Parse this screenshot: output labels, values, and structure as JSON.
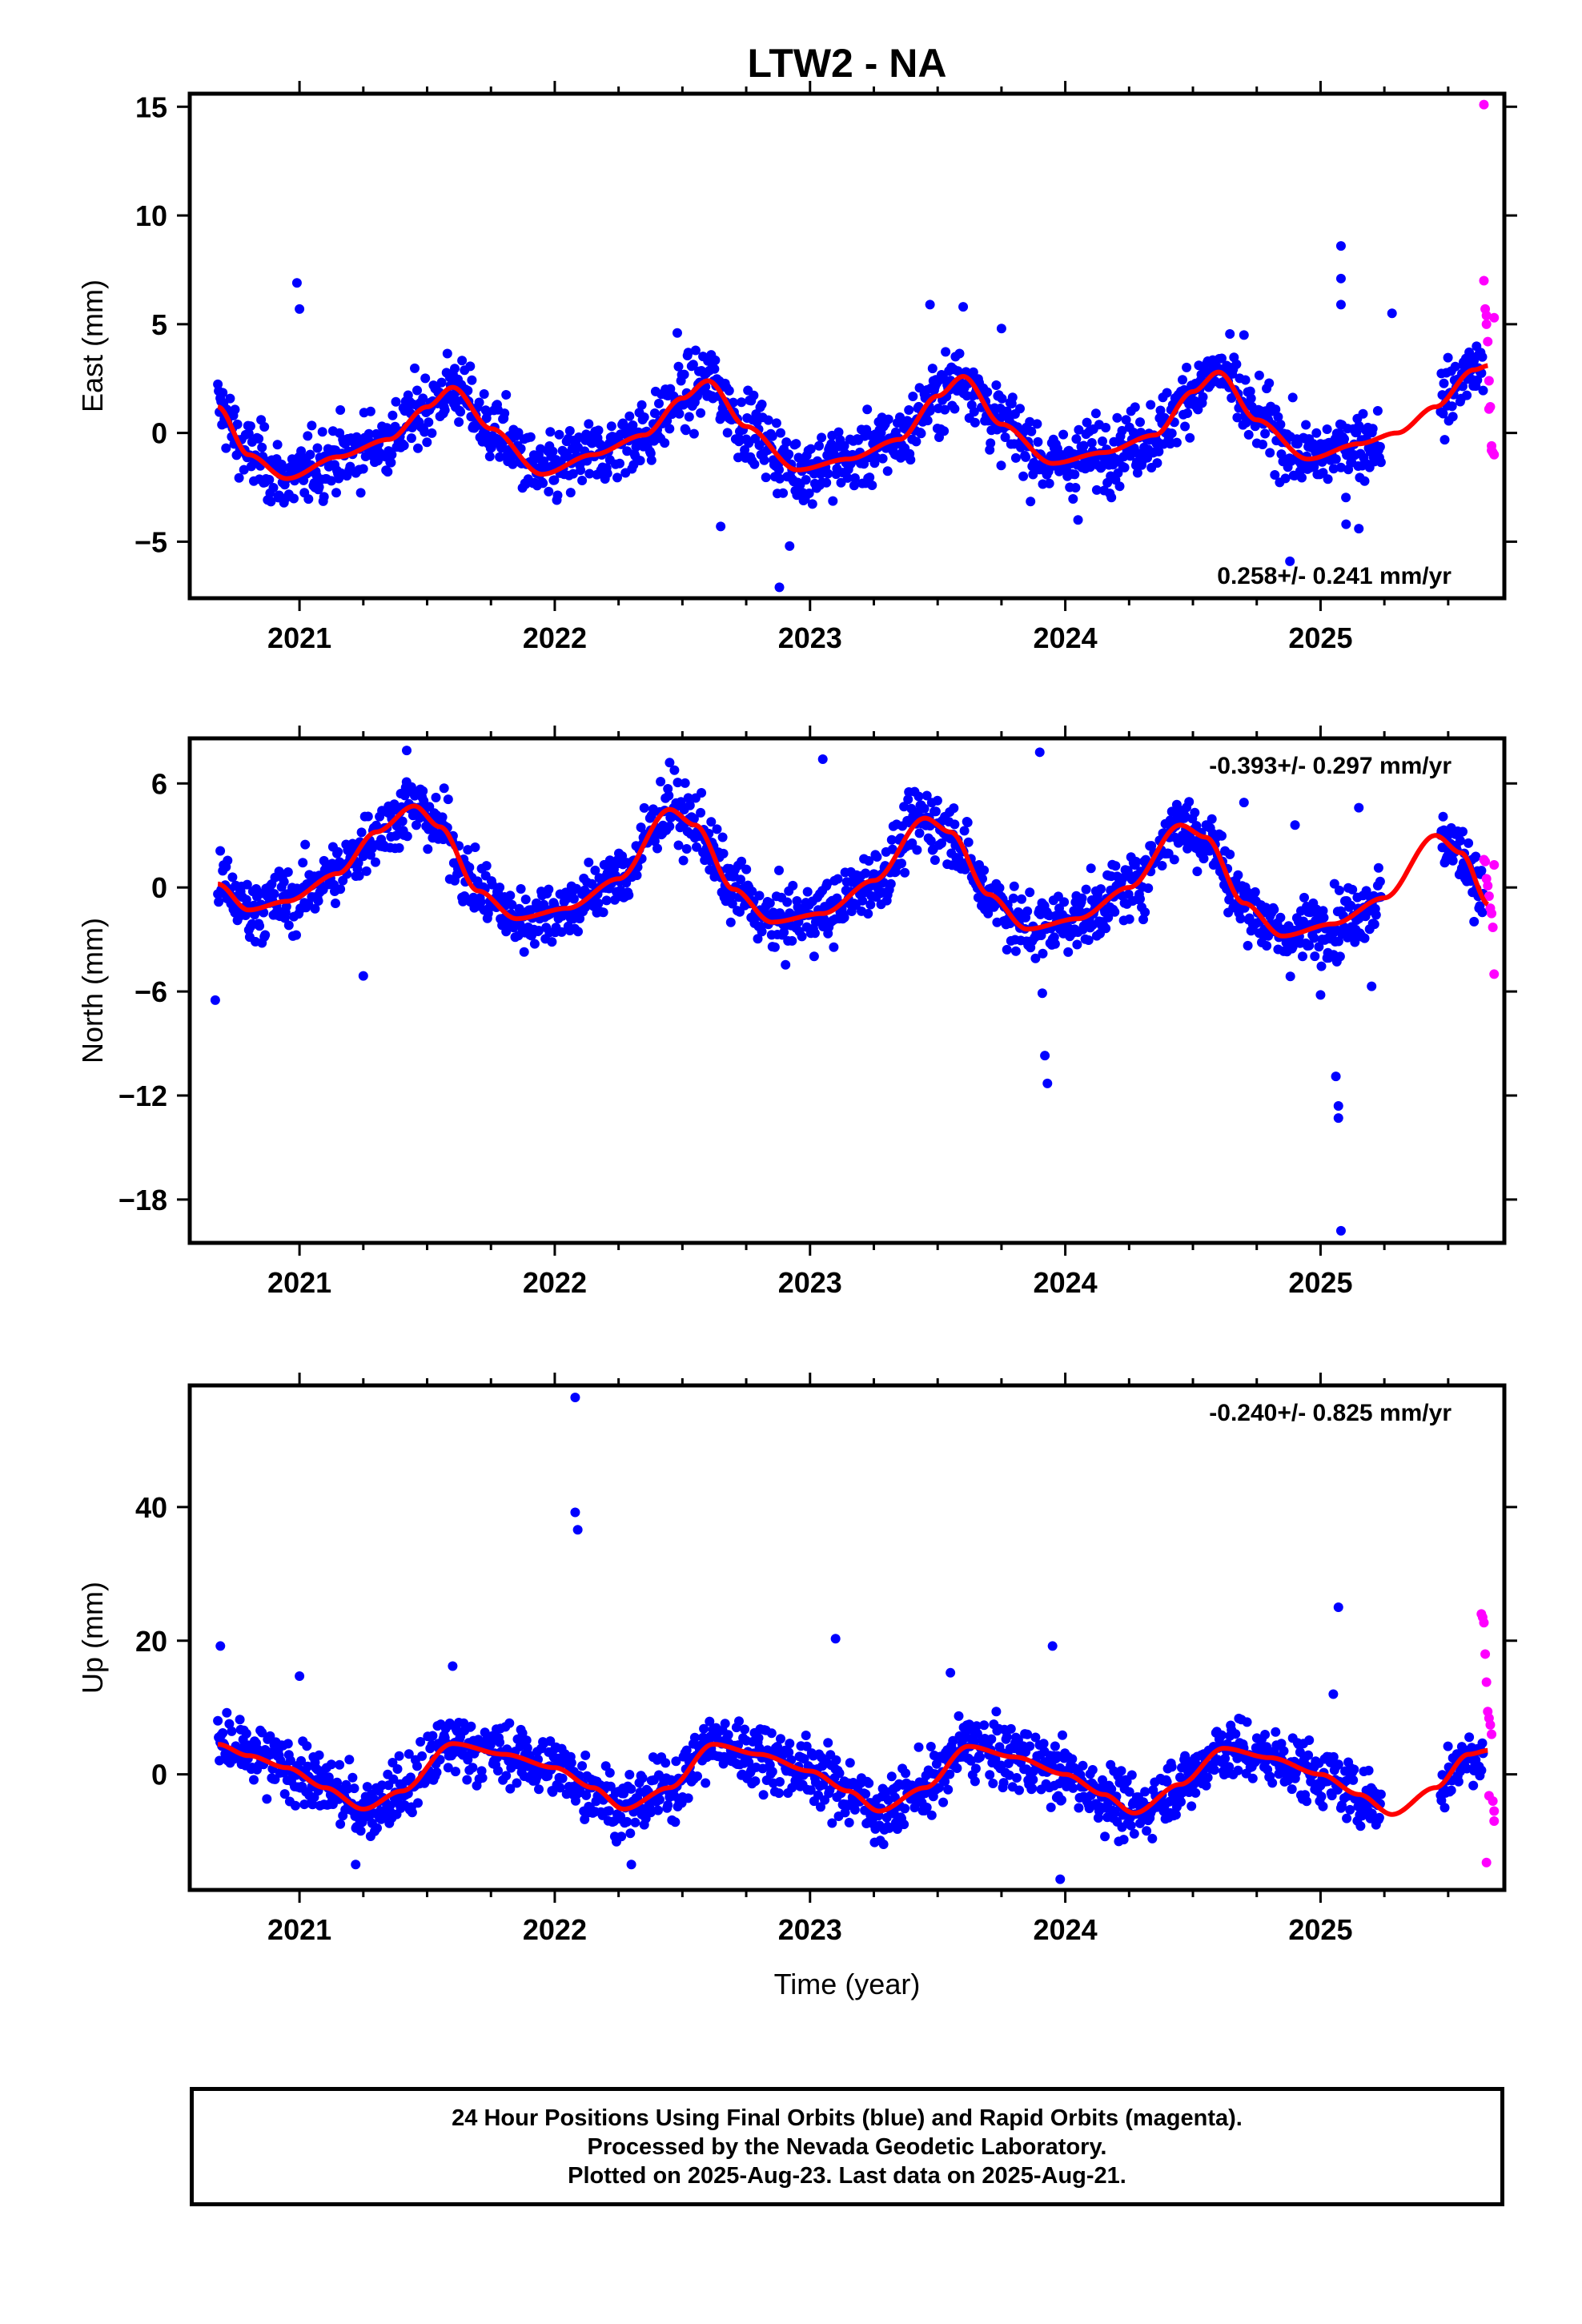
{
  "title": "LTW2 - NA",
  "footer": {
    "line1": "24 Hour Positions Using Final Orbits (blue) and Rapid Orbits (magenta).",
    "line2": "Processed by the Nevada Geodetic Laboratory.",
    "line3": "Plotted on 2025-Aug-23. Last data on 2025-Aug-21."
  },
  "colors": {
    "final": "#0000ff",
    "rapid": "#ff00ff",
    "model": "#ff0000",
    "axes": "#000000"
  },
  "chart_data": [
    {
      "type": "scatter",
      "ylabel": "East (mm)",
      "xlabel": "",
      "xlim": [
        2020.57,
        2025.72
      ],
      "ylim": [
        -7.6,
        15.6
      ],
      "xticks": [
        "2021",
        "2022",
        "2023",
        "2024",
        "2025"
      ],
      "yticks": [
        15,
        10,
        5,
        0,
        -5
      ],
      "rate_label": "0.258+/- 0.241 mm/yr",
      "rate_position": "bottom-right",
      "model": {
        "x": [
          2020.68,
          2020.8,
          2020.95,
          2021.15,
          2021.35,
          2021.5,
          2021.6,
          2021.75,
          2021.95,
          2022.15,
          2022.35,
          2022.5,
          2022.6,
          2022.75,
          2022.95,
          2023.15,
          2023.35,
          2023.5,
          2023.6,
          2023.75,
          2023.95,
          2024.15,
          2024.35,
          2024.5,
          2024.6,
          2024.75,
          2024.95,
          2025.15,
          2025.3,
          2025.45,
          2025.6,
          2025.66
        ],
        "y": [
          1.2,
          -1.0,
          -2.1,
          -1.1,
          -0.3,
          1.2,
          2.1,
          0.2,
          -1.9,
          -1.0,
          -0.1,
          1.6,
          2.4,
          0.3,
          -1.7,
          -1.2,
          -0.3,
          1.7,
          2.6,
          0.4,
          -1.4,
          -0.9,
          -0.1,
          1.9,
          2.8,
          0.6,
          -1.2,
          -0.5,
          0.0,
          1.2,
          2.9,
          3.1
        ]
      },
      "outliers_final": {
        "x": [
          2020.99,
          2021.0,
          2022.48,
          2022.65,
          2022.88,
          2022.92,
          2023.47,
          2023.6,
          2023.75,
          2024.05,
          2024.7,
          2024.88,
          2025.08,
          2025.08,
          2025.08,
          2025.1,
          2025.15,
          2025.28
        ],
        "y": [
          6.9,
          5.7,
          4.6,
          -4.3,
          -7.1,
          -5.2,
          5.9,
          5.8,
          4.8,
          -4.0,
          4.5,
          -5.9,
          8.6,
          7.1,
          5.9,
          -4.2,
          -4.4,
          5.5
        ]
      },
      "rapid": {
        "x": [
          2025.64,
          2025.64,
          2025.645,
          2025.65,
          2025.65,
          2025.655,
          2025.66,
          2025.66,
          2025.665,
          2025.67,
          2025.67,
          2025.675,
          2025.68,
          2025.68
        ],
        "y": [
          15.1,
          7.0,
          5.7,
          5.4,
          5.0,
          4.2,
          2.4,
          1.1,
          1.2,
          -0.6,
          -0.8,
          -0.9,
          -1.0,
          5.3
        ]
      }
    },
    {
      "type": "scatter",
      "ylabel": "North (mm)",
      "xlabel": "",
      "xlim": [
        2020.57,
        2025.72
      ],
      "ylim": [
        -20.5,
        8.6
      ],
      "xticks": [
        "2021",
        "2022",
        "2023",
        "2024",
        "2025"
      ],
      "yticks": [
        6,
        0,
        -6,
        -12,
        -18
      ],
      "rate_label": "-0.393+/- 0.297 mm/yr",
      "rate_position": "top-right",
      "model": {
        "x": [
          2020.68,
          2020.8,
          2020.95,
          2021.15,
          2021.3,
          2021.45,
          2021.55,
          2021.7,
          2021.85,
          2022.05,
          2022.25,
          2022.45,
          2022.55,
          2022.7,
          2022.85,
          2023.05,
          2023.25,
          2023.45,
          2023.55,
          2023.7,
          2023.85,
          2024.05,
          2024.25,
          2024.45,
          2024.55,
          2024.7,
          2024.85,
          2025.05,
          2025.25,
          2025.45,
          2025.55,
          2025.66
        ],
        "y": [
          0.2,
          -1.3,
          -0.8,
          0.8,
          3.2,
          4.7,
          3.5,
          -0.2,
          -1.8,
          -1.2,
          0.5,
          4.5,
          3.6,
          -0.1,
          -2.0,
          -1.5,
          0.4,
          4.0,
          3.2,
          -0.4,
          -2.4,
          -1.8,
          0.0,
          3.6,
          2.9,
          -0.9,
          -2.8,
          -2.1,
          -0.6,
          3.0,
          2.0,
          -1.0
        ]
      },
      "outliers_final": {
        "x": [
          2020.67,
          2021.25,
          2021.42,
          2022.45,
          2023.05,
          2023.9,
          2023.91,
          2023.92,
          2023.93,
          2024.7,
          2024.9,
          2025.0,
          2025.06,
          2025.07,
          2025.07,
          2025.08,
          2025.15,
          2025.2
        ],
        "y": [
          -6.5,
          -5.1,
          7.9,
          7.2,
          7.4,
          7.8,
          -6.1,
          -9.7,
          -11.3,
          4.9,
          3.6,
          -6.2,
          -10.9,
          -13.3,
          -12.6,
          -19.8,
          4.6,
          -5.7
        ]
      },
      "rapid": {
        "x": [
          2025.64,
          2025.645,
          2025.65,
          2025.655,
          2025.66,
          2025.665,
          2025.67,
          2025.675,
          2025.68,
          2025.68
        ],
        "y": [
          1.6,
          1.5,
          0.5,
          0.1,
          -0.5,
          -1.2,
          -1.5,
          -2.3,
          -5.0,
          1.3
        ]
      }
    },
    {
      "type": "scatter",
      "ylabel": "Up (mm)",
      "xlabel": "Time (year)",
      "xlim": [
        2020.57,
        2025.72
      ],
      "ylim": [
        -17.3,
        58.2
      ],
      "xticks": [
        "2021",
        "2022",
        "2023",
        "2024",
        "2025"
      ],
      "yticks": [
        40,
        20,
        0
      ],
      "rate_label": "-0.240+/- 0.825 mm/yr",
      "rate_position": "top-right",
      "model": {
        "x": [
          2020.68,
          2020.8,
          2020.95,
          2021.1,
          2021.25,
          2021.4,
          2021.6,
          2021.8,
          2022.0,
          2022.15,
          2022.27,
          2022.45,
          2022.62,
          2022.8,
          2023.0,
          2023.15,
          2023.27,
          2023.45,
          2023.62,
          2023.8,
          2024.0,
          2024.15,
          2024.27,
          2024.45,
          2024.62,
          2024.8,
          2025.0,
          2025.15,
          2025.28,
          2025.45,
          2025.58,
          2025.66
        ],
        "y": [
          4.5,
          2.8,
          1.0,
          -2.0,
          -5.2,
          -2.5,
          4.6,
          3.0,
          1.0,
          -2.0,
          -5.2,
          -2.0,
          4.5,
          3.0,
          0.5,
          -2.5,
          -5.5,
          -2.0,
          4.2,
          2.6,
          0.0,
          -3.0,
          -5.8,
          -1.5,
          3.9,
          2.5,
          0.0,
          -3.0,
          -6.0,
          -2.0,
          3.0,
          3.6
        ]
      },
      "outliers_final": {
        "x": [
          2020.69,
          2021.0,
          2021.22,
          2021.6,
          2022.08,
          2022.08,
          2022.09,
          2022.3,
          2023.1,
          2023.55,
          2023.95,
          2023.98,
          2025.07,
          2025.05
        ],
        "y": [
          19.2,
          14.7,
          -13.5,
          16.2,
          56.4,
          39.2,
          36.6,
          -13.5,
          20.3,
          15.2,
          19.2,
          -15.7,
          25.0,
          12.0
        ]
      },
      "rapid": {
        "x": [
          2025.63,
          2025.635,
          2025.64,
          2025.645,
          2025.65,
          2025.655,
          2025.66,
          2025.665,
          2025.67,
          2025.675,
          2025.68,
          2025.68,
          2025.65,
          2025.66
        ],
        "y": [
          24.0,
          23.5,
          22.7,
          18.0,
          13.8,
          9.4,
          8.4,
          7.4,
          6.0,
          -4.0,
          -5.5,
          -7.0,
          -13.2,
          -3.2
        ]
      }
    }
  ]
}
